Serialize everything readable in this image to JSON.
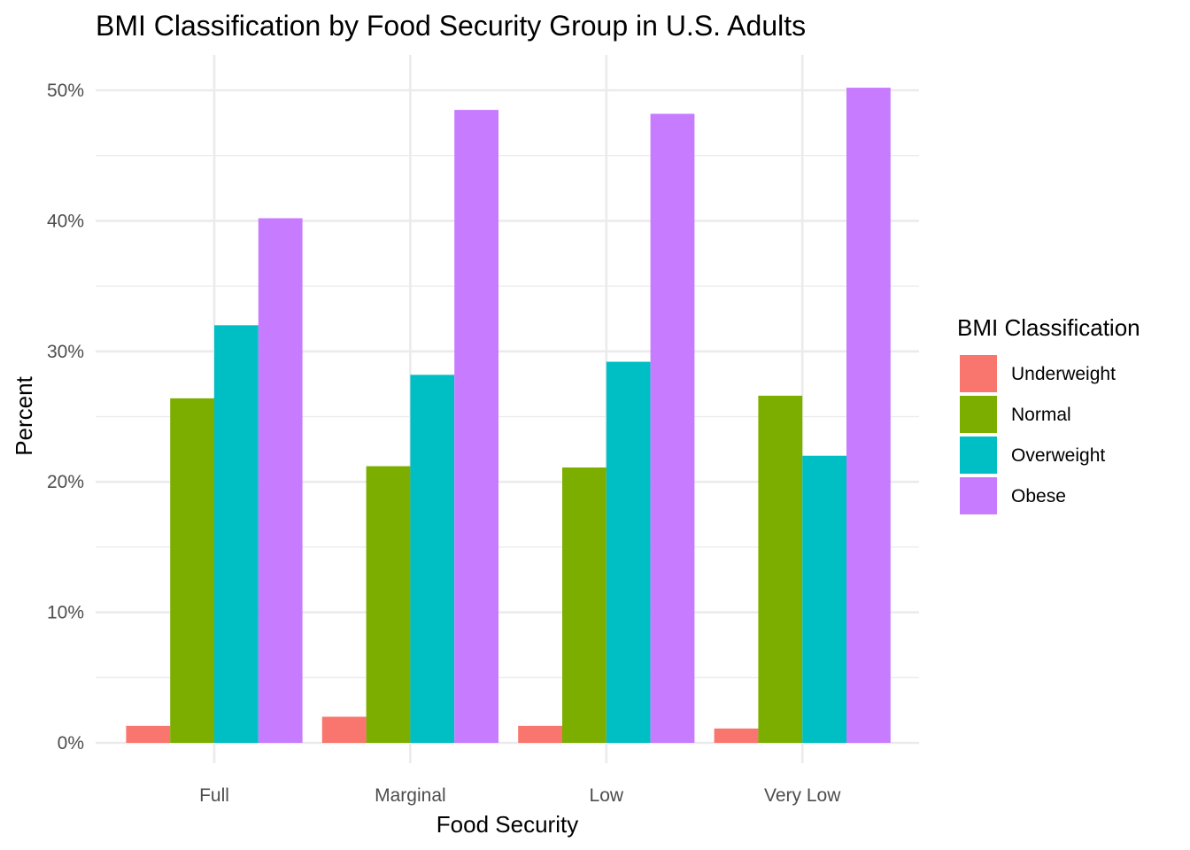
{
  "chart_data": {
    "type": "bar",
    "title": "BMI Classification by Food Security Group in U.S. Adults",
    "xlabel": "Food Security",
    "ylabel": "Percent",
    "categories": [
      "Full",
      "Marginal",
      "Low",
      "Very Low"
    ],
    "y_ticks": [
      0,
      10,
      20,
      30,
      40,
      50
    ],
    "y_tick_labels": [
      "0%",
      "10%",
      "20%",
      "30%",
      "40%",
      "50%"
    ],
    "ylim": [
      0,
      52.7
    ],
    "grid": true,
    "legend_position": "right",
    "legend_title": "BMI Classification",
    "series": [
      {
        "name": "Underweight",
        "color": "#F8766D",
        "values": [
          1.3,
          2.0,
          1.3,
          1.1
        ]
      },
      {
        "name": "Normal",
        "color": "#7CAE00",
        "values": [
          26.4,
          21.2,
          21.1,
          26.6
        ]
      },
      {
        "name": "Overweight",
        "color": "#00BFC4",
        "values": [
          32.0,
          28.2,
          29.2,
          22.0
        ]
      },
      {
        "name": "Obese",
        "color": "#C77CFF",
        "values": [
          40.2,
          48.5,
          48.2,
          50.2
        ]
      }
    ]
  }
}
